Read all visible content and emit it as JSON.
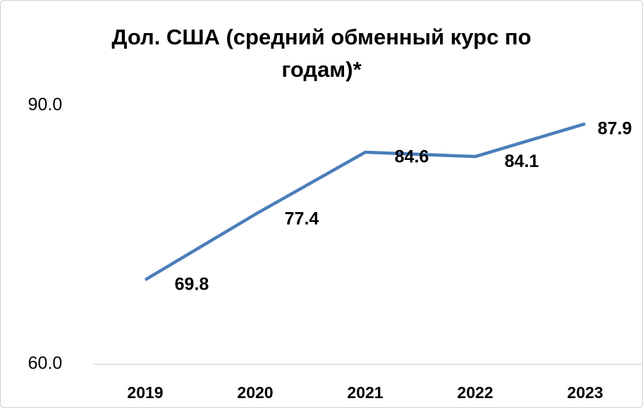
{
  "chart_data": {
    "type": "line",
    "title": "Дол. США (средний обменный курс по годам)*",
    "categories": [
      "2019",
      "2020",
      "2021",
      "2022",
      "2023"
    ],
    "series": [
      {
        "name": "Дол. США",
        "color": "#4a7ebb",
        "values": [
          69.8,
          77.4,
          84.6,
          84.1,
          87.9
        ]
      }
    ],
    "ylim": [
      60,
      90
    ],
    "yticks": [
      {
        "value": 60,
        "label": "60.0"
      },
      {
        "value": 90,
        "label": "90.0"
      }
    ],
    "grid": false
  }
}
